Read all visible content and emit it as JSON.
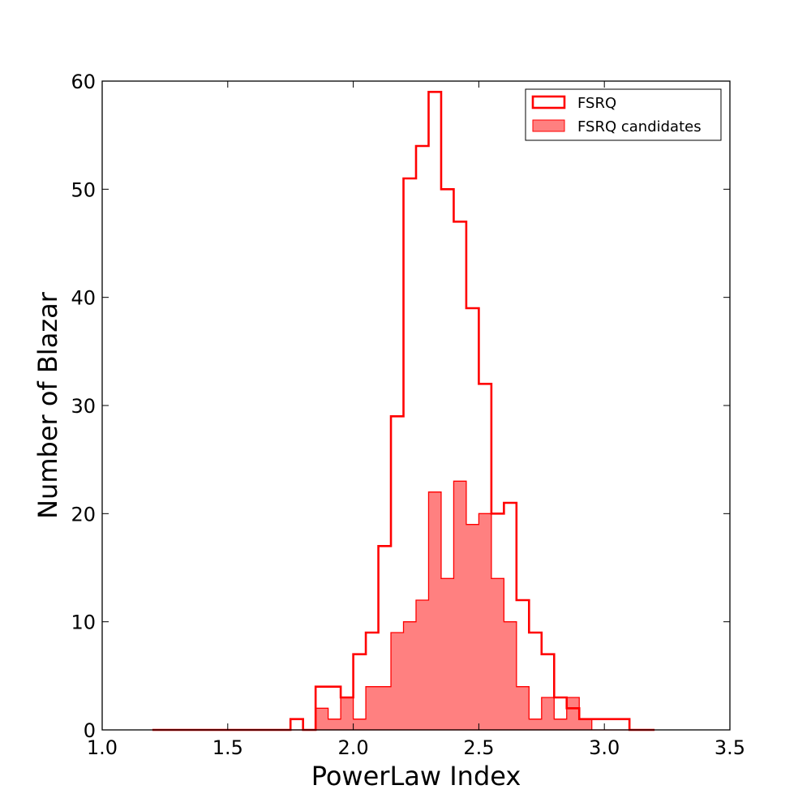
{
  "chart_data": {
    "type": "histogram",
    "title": "",
    "xlabel": "PowerLaw Index",
    "ylabel": "Number of Blazar",
    "xlim": [
      1.0,
      3.5
    ],
    "ylim": [
      0,
      60
    ],
    "xticks": [
      "1.0",
      "1.5",
      "2.0",
      "2.5",
      "3.0",
      "3.5"
    ],
    "yticks": [
      "0",
      "10",
      "20",
      "30",
      "40",
      "50",
      "60"
    ],
    "grid": false,
    "legend_position": "top-right",
    "series": [
      {
        "name": "FSRQ",
        "style": "step-outline",
        "color": "#ff0000",
        "bin_edges": [
          1.2,
          1.25,
          1.3,
          1.35,
          1.4,
          1.45,
          1.5,
          1.55,
          1.6,
          1.65,
          1.7,
          1.75,
          1.8,
          1.85,
          1.9,
          1.95,
          2.0,
          2.05,
          2.1,
          2.15,
          2.2,
          2.25,
          2.3,
          2.35,
          2.4,
          2.45,
          2.5,
          2.55,
          2.6,
          2.65,
          2.7,
          2.75,
          2.8,
          2.85,
          2.9,
          2.95,
          3.0,
          3.05,
          3.1,
          3.15,
          3.2
        ],
        "counts": [
          0,
          0,
          0,
          0,
          0,
          0,
          0,
          0,
          0,
          0,
          0,
          1,
          0,
          4,
          4,
          3,
          7,
          9,
          17,
          29,
          51,
          54,
          59,
          50,
          47,
          39,
          32,
          20,
          21,
          12,
          9,
          7,
          3,
          2,
          1,
          1,
          1,
          1,
          0,
          0
        ]
      },
      {
        "name": "FSRQ candidates",
        "style": "step-filled",
        "color": "#ff8080",
        "edge_color": "#ff0000",
        "bin_edges": [
          1.2,
          1.25,
          1.3,
          1.35,
          1.4,
          1.45,
          1.5,
          1.55,
          1.6,
          1.65,
          1.7,
          1.75,
          1.8,
          1.85,
          1.9,
          1.95,
          2.0,
          2.05,
          2.1,
          2.15,
          2.2,
          2.25,
          2.3,
          2.35,
          2.4,
          2.45,
          2.5,
          2.55,
          2.6,
          2.65,
          2.7,
          2.75,
          2.8,
          2.85,
          2.9,
          2.95,
          3.0,
          3.05,
          3.1,
          3.15,
          3.2
        ],
        "counts": [
          0,
          0,
          0,
          0,
          0,
          0,
          0,
          0,
          0,
          0,
          0,
          0,
          0,
          2,
          1,
          3,
          1,
          4,
          4,
          9,
          10,
          12,
          22,
          14,
          23,
          19,
          20,
          14,
          10,
          4,
          1,
          3,
          1,
          3,
          1,
          0,
          0,
          0,
          0,
          0
        ]
      }
    ]
  }
}
